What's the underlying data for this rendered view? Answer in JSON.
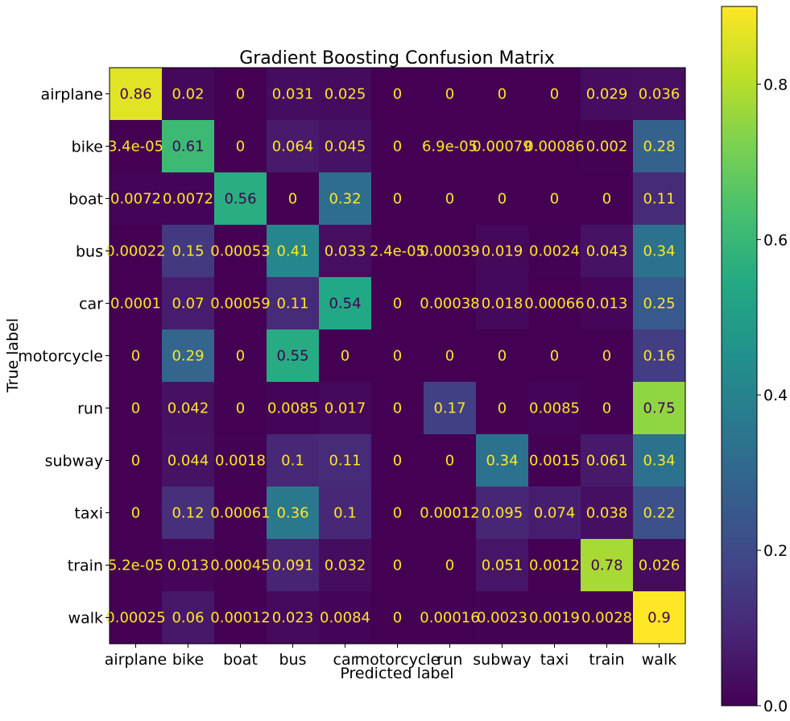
{
  "chart_data": {
    "type": "heatmap",
    "title": "Gradient Boosting Confusion Matrix",
    "xlabel": "Predicted label",
    "ylabel": "True label",
    "x_categories": [
      "airplane",
      "bike",
      "boat",
      "bus",
      "car",
      "motorcycle",
      "run",
      "subway",
      "taxi",
      "train",
      "walk"
    ],
    "y_categories": [
      "airplane",
      "bike",
      "boat",
      "bus",
      "car",
      "motorcycle",
      "run",
      "subway",
      "taxi",
      "train",
      "walk"
    ],
    "values": [
      [
        0.86,
        0.02,
        0,
        0.031,
        0.025,
        0,
        0,
        0,
        0,
        0.029,
        0.036
      ],
      [
        3.4e-05,
        0.61,
        0,
        0.064,
        0.045,
        0,
        6.9e-05,
        0.00079,
        0.00086,
        0.002,
        0.28
      ],
      [
        0.0072,
        0.0072,
        0.56,
        0,
        0.32,
        0,
        0,
        0,
        0,
        0,
        0.11
      ],
      [
        0.00022,
        0.15,
        0.00053,
        0.41,
        0.033,
        2.4e-05,
        0.00039,
        0.019,
        0.0024,
        0.043,
        0.34
      ],
      [
        0.0001,
        0.07,
        0.00059,
        0.11,
        0.54,
        0,
        0.00038,
        0.018,
        0.00066,
        0.013,
        0.25
      ],
      [
        0,
        0.29,
        0,
        0.55,
        0,
        0,
        0,
        0,
        0,
        0,
        0.16
      ],
      [
        0,
        0.042,
        0,
        0.0085,
        0.017,
        0,
        0.17,
        0,
        0.0085,
        0,
        0.75
      ],
      [
        0,
        0.044,
        0.0018,
        0.1,
        0.11,
        0,
        0,
        0.34,
        0.0015,
        0.061,
        0.34
      ],
      [
        0,
        0.12,
        0.00061,
        0.36,
        0.1,
        0,
        0.00012,
        0.095,
        0.074,
        0.038,
        0.22
      ],
      [
        5.2e-05,
        0.013,
        0.00045,
        0.091,
        0.032,
        0,
        0,
        0.051,
        0.0012,
        0.78,
        0.026
      ],
      [
        0.00025,
        0.06,
        0.00012,
        0.023,
        0.0084,
        0,
        0.00016,
        0.0023,
        0.0019,
        0.0028,
        0.9
      ]
    ],
    "cell_labels": [
      [
        "0.86",
        "0.02",
        "0",
        "0.031",
        "0.025",
        "0",
        "0",
        "0",
        "0",
        "0.029",
        "0.036"
      ],
      [
        "3.4e-05",
        "0.61",
        "0",
        "0.064",
        "0.045",
        "0",
        "6.9e-05",
        "0.00079",
        "0.00086",
        "0.002",
        "0.28"
      ],
      [
        "0.0072",
        "0.0072",
        "0.56",
        "0",
        "0.32",
        "0",
        "0",
        "0",
        "0",
        "0",
        "0.11"
      ],
      [
        "0.00022",
        "0.15",
        "0.00053",
        "0.41",
        "0.033",
        "2.4e-05",
        "0.00039",
        "0.019",
        "0.0024",
        "0.043",
        "0.34"
      ],
      [
        "0.0001",
        "0.07",
        "0.00059",
        "0.11",
        "0.54",
        "0",
        "0.00038",
        "0.018",
        "0.00066",
        "0.013",
        "0.25"
      ],
      [
        "0",
        "0.29",
        "0",
        "0.55",
        "0",
        "0",
        "0",
        "0",
        "0",
        "0",
        "0.16"
      ],
      [
        "0",
        "0.042",
        "0",
        "0.0085",
        "0.017",
        "0",
        "0.17",
        "0",
        "0.0085",
        "0",
        "0.75"
      ],
      [
        "0",
        "0.044",
        "0.0018",
        "0.1",
        "0.11",
        "0",
        "0",
        "0.34",
        "0.0015",
        "0.061",
        "0.34"
      ],
      [
        "0",
        "0.12",
        "0.00061",
        "0.36",
        "0.1",
        "0",
        "0.00012",
        "0.095",
        "0.074",
        "0.038",
        "0.22"
      ],
      [
        "5.2e-05",
        "0.013",
        "0.00045",
        "0.091",
        "0.032",
        "0",
        "0",
        "0.051",
        "0.0012",
        "0.78",
        "0.026"
      ],
      [
        "0.00025",
        "0.06",
        "0.00012",
        "0.023",
        "0.0084",
        "0",
        "0.00016",
        "0.0023",
        "0.0019",
        "0.0028",
        "0.9"
      ]
    ],
    "colormap": "viridis",
    "vmin": 0,
    "vmax": 0.9,
    "colorbar_ticks": [
      0.0,
      0.2,
      0.4,
      0.6,
      0.8
    ],
    "colorbar_tick_labels": [
      "0.0",
      "0.2",
      "0.4",
      "0.6",
      "0.8"
    ],
    "text_color_light": "#fde725",
    "text_color_dark": "#440154"
  }
}
